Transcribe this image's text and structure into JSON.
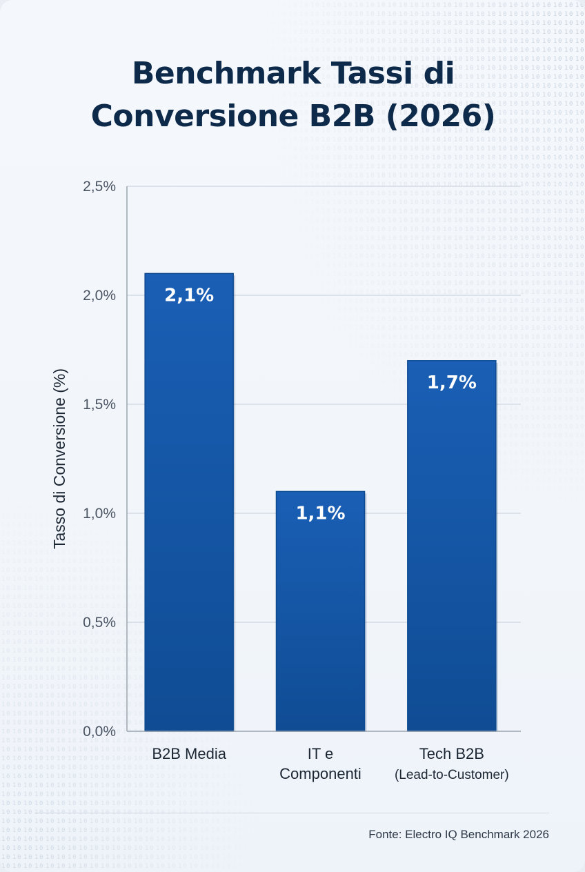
{
  "chart_data": {
    "type": "bar",
    "title": "Benchmark Tassi di Conversione B2B (2026)",
    "ylabel": "Tasso di Conversione (%)",
    "xlabel": "",
    "categories": [
      [
        "B2B Media"
      ],
      [
        "IT e",
        "Componenti"
      ],
      [
        "Tech B2B",
        "(Lead-to-Customer)"
      ]
    ],
    "values": [
      2.1,
      1.1,
      1.7
    ],
    "data_labels": [
      "2,1%",
      "1,1%",
      "1,7%"
    ],
    "ylim": [
      0,
      2.5
    ],
    "yticks": [
      0,
      0.5,
      1.0,
      1.5,
      2.0,
      2.5
    ],
    "ytick_labels": [
      "0,0%",
      "0,5%",
      "1,0%",
      "1,5%",
      "2,0%",
      "2,5%"
    ],
    "grid": true,
    "legend": "none",
    "bar_color": "#1a5fb5",
    "bar_color_dark": "#0f4c94"
  },
  "source": "Fonte: Electro IQ Benchmark 2026"
}
